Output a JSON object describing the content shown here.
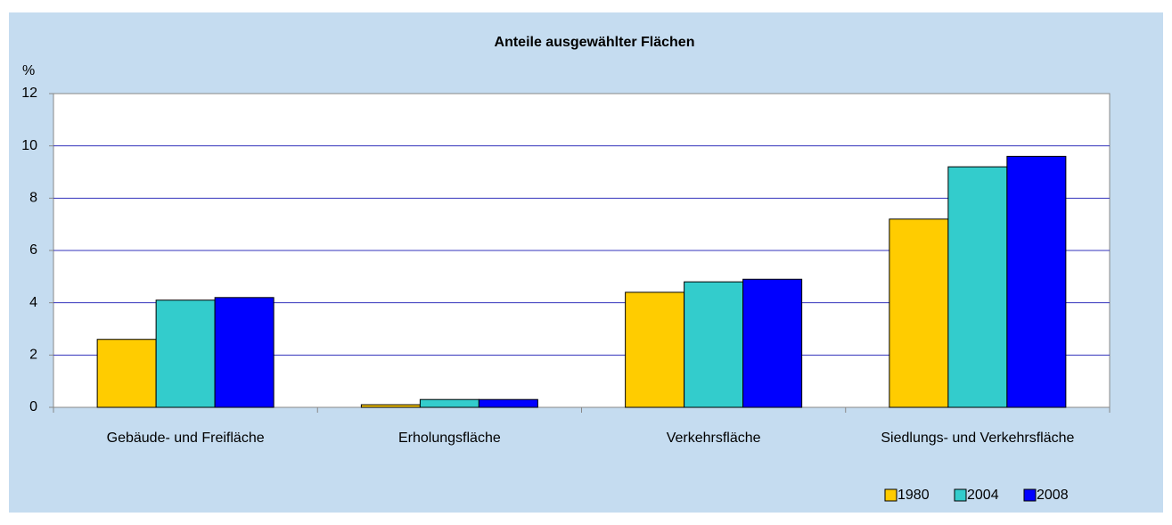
{
  "chart_data": {
    "type": "bar",
    "title": "Anteile ausgewählter Flächen",
    "y_label": "%",
    "categories": [
      "Gebäude- und Freifläche",
      "Erholungsfläche",
      "Verkehrsfläche",
      "Siedlungs- und Verkehrsfläche"
    ],
    "series": [
      {
        "name": "1980",
        "color": "#ffcc00",
        "values": [
          2.6,
          0.1,
          4.4,
          7.2
        ]
      },
      {
        "name": "2004",
        "color": "#33cccc",
        "values": [
          4.1,
          0.3,
          4.8,
          9.2
        ]
      },
      {
        "name": "2008",
        "color": "#0000ff",
        "values": [
          4.2,
          0.3,
          4.9,
          9.6
        ]
      }
    ],
    "ylim": [
      0,
      12
    ],
    "yticks": [
      0,
      2,
      4,
      6,
      8,
      10,
      12
    ],
    "grid": true,
    "legend": "bottom-right"
  }
}
